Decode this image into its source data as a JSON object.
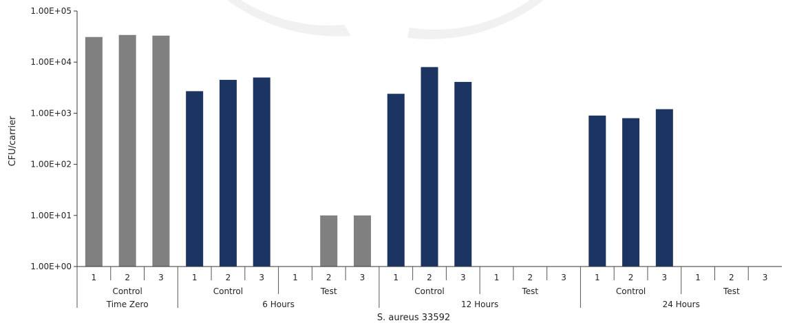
{
  "chart_data": {
    "type": "bar",
    "title": "",
    "ylabel": "CFU/carrier",
    "xlabel": "S. aureus 33592",
    "y_scale": "log",
    "ylim": [
      1,
      100000
    ],
    "y_ticks": [
      1,
      10,
      100,
      1000,
      10000,
      100000
    ],
    "y_tick_labels": [
      "1.00E+00",
      "1.00E+01",
      "1.00E+02",
      "1.00E+03",
      "1.00E+04",
      "1.00E+05"
    ],
    "grid": false,
    "legend": "none",
    "colors": {
      "time_zero": "#808080",
      "control": "#1c3461",
      "test": "#808080"
    },
    "time_points": [
      {
        "label": "Time Zero",
        "groups": [
          {
            "label": "Control",
            "bars": [
              {
                "label": "1",
                "value": 31000
              },
              {
                "label": "2",
                "value": 34000
              },
              {
                "label": "3",
                "value": 33000
              }
            ]
          }
        ]
      },
      {
        "label": "6 Hours",
        "groups": [
          {
            "label": "Control",
            "bars": [
              {
                "label": "1",
                "value": 2700
              },
              {
                "label": "2",
                "value": 4500
              },
              {
                "label": "3",
                "value": 5000
              }
            ]
          },
          {
            "label": "Test",
            "bars": [
              {
                "label": "1",
                "value": null
              },
              {
                "label": "2",
                "value": 10
              },
              {
                "label": "3",
                "value": 10
              }
            ]
          }
        ]
      },
      {
        "label": "12 Hours",
        "groups": [
          {
            "label": "Control",
            "bars": [
              {
                "label": "1",
                "value": 2400
              },
              {
                "label": "2",
                "value": 8000
              },
              {
                "label": "3",
                "value": 4100
              }
            ]
          },
          {
            "label": "Test",
            "bars": [
              {
                "label": "1",
                "value": null
              },
              {
                "label": "2",
                "value": null
              },
              {
                "label": "3",
                "value": null
              }
            ]
          }
        ]
      },
      {
        "label": "24 Hours",
        "groups": [
          {
            "label": "Control",
            "bars": [
              {
                "label": "1",
                "value": 900
              },
              {
                "label": "2",
                "value": 800
              },
              {
                "label": "3",
                "value": 1200
              }
            ]
          },
          {
            "label": "Test",
            "bars": [
              {
                "label": "1",
                "value": null
              },
              {
                "label": "2",
                "value": null
              },
              {
                "label": "3",
                "value": null
              }
            ]
          }
        ]
      }
    ]
  }
}
